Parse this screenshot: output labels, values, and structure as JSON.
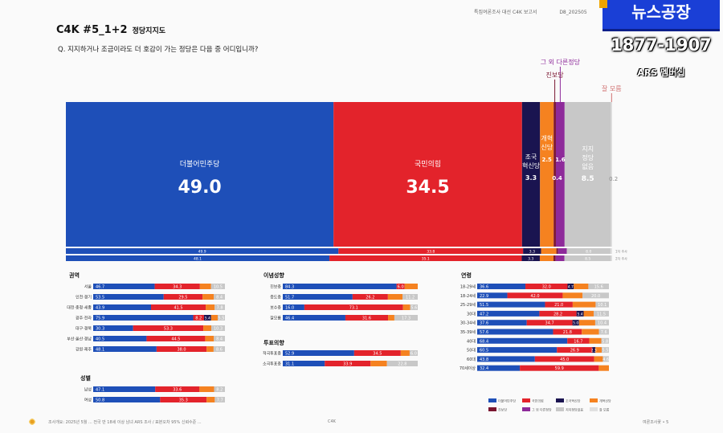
{
  "header": {
    "top_items": [
      "특집여론조사 대선 C4K 보고서",
      "D8_202505"
    ],
    "title": "C4K #5_1+2",
    "subtitle": "정당지지도",
    "question": "Q. 지지하거나 조금이라도 더 호감이 가는 정당은 다음 중 어디입니까?"
  },
  "badge": {
    "logo": "뉴스공장",
    "phone": "1877-1907",
    "label": "ARS 멤버십"
  },
  "colors": {
    "dem": "#1e4fb8",
    "ppp": "#e3232b",
    "rebuild": "#1a1450",
    "reform": "#f58220",
    "progressive": "#7a1530",
    "other": "#8e2a9a",
    "none": "#c8c8c8",
    "dontknow": "#e0e0e0"
  },
  "chart_data": {
    "type": "bar",
    "main": {
      "categories": [
        "더불어민주당",
        "국민의힘",
        "조국혁신당",
        "개혁신당",
        "진보당",
        "그 외 다른정당",
        "지지정당없음",
        "잘 모름"
      ],
      "values": [
        49.0,
        34.5,
        3.3,
        2.5,
        0.4,
        1.6,
        8.5,
        0.2
      ],
      "value_labels": [
        "49.0",
        "34.5",
        "3.3",
        "2.5",
        "0.4",
        "1.6",
        "8.5",
        "0.2"
      ],
      "compare_rows": [
        {
          "values": [
            "49.9",
            "33.8",
            "3.3",
            "2.8",
            "0.3",
            "1.6",
            "8.0",
            "0.3"
          ],
          "tag": "1차 주사"
        },
        {
          "values": [
            "48.1",
            "35.1",
            "3.3",
            "2.5",
            "0.4",
            "1.6",
            "8.5",
            "0.2"
          ],
          "tag": "2차 주사"
        }
      ]
    },
    "panels": [
      {
        "title": "권역",
        "rows": [
          {
            "label": "서울",
            "dem": 46.7,
            "ppp": 34.3,
            "dk": "10.5"
          },
          {
            "label": "인천·경기",
            "dem": 53.5,
            "ppp": 29.5,
            "dk": "8.4"
          },
          {
            "label": "대전·충청·세종",
            "dem": 43.9,
            "ppp": 41.5,
            "dk": "7.8"
          },
          {
            "label": "광주·전라",
            "dem": 75.9,
            "ppp": 8.2,
            "dk": "5.5",
            "extra": "5.4"
          },
          {
            "label": "대구·경북",
            "dem": 30.3,
            "ppp": 53.3,
            "dk": "10.3"
          },
          {
            "label": "부산·울산·경남",
            "dem": 40.5,
            "ppp": 44.5,
            "dk": "8.4"
          },
          {
            "label": "강원·제주",
            "dem": 48.1,
            "ppp": 38.0,
            "dk": "8.6"
          }
        ]
      },
      {
        "title": "성별",
        "rows": [
          {
            "label": "남성",
            "dem": 47.1,
            "ppp": 33.6,
            "dk": "8.2"
          },
          {
            "label": "여성",
            "dem": 50.8,
            "ppp": 35.3,
            "dk": "7.7"
          }
        ]
      },
      {
        "title": "이념성향",
        "rows": [
          {
            "label": "진보층",
            "dem": 84.3,
            "ppp": 6.0,
            "dk": ""
          },
          {
            "label": "중도층",
            "dem": 51.7,
            "ppp": 26.2,
            "dk": "11.2"
          },
          {
            "label": "보수층",
            "dem": 16.0,
            "ppp": 73.1,
            "dk": "5.6"
          },
          {
            "label": "잘모름",
            "dem": 46.4,
            "ppp": 31.6,
            "dk": "17.3"
          }
        ]
      },
      {
        "title": "투표의향",
        "rows": [
          {
            "label": "적극투표층",
            "dem": 52.9,
            "ppp": 34.5,
            "dk": "6.0"
          },
          {
            "label": "소극투표층",
            "dem": 31.1,
            "ppp": 33.9,
            "dk": "22.8"
          }
        ]
      },
      {
        "title": "연령",
        "rows": [
          {
            "label": "18-29세",
            "dem": 36.6,
            "ppp": 32.0,
            "dk": "15.6",
            "extra": "4.7"
          },
          {
            "label": "18-24세",
            "dem": 22.9,
            "ppp": 42.0,
            "dk": "20.0"
          },
          {
            "label": "25-29세",
            "dem": 51.5,
            "ppp": 21.0,
            "dk": "10.1"
          },
          {
            "label": "30대",
            "dem": 47.2,
            "ppp": 28.2,
            "dk": "11.5",
            "extra": "5.4"
          },
          {
            "label": "30-34세",
            "dem": 37.6,
            "ppp": 34.7,
            "dk": "10.4",
            "extra": "5.0"
          },
          {
            "label": "35-39세",
            "dem": 57.6,
            "ppp": 21.8,
            "dk": "7.6"
          },
          {
            "label": "40대",
            "dem": 68.4,
            "ppp": 16.7,
            "dk": "5.8"
          },
          {
            "label": "50대",
            "dem": 60.5,
            "ppp": 26.9,
            "dk": "5.5",
            "extra": "2.3"
          },
          {
            "label": "60대",
            "dem": 43.8,
            "ppp": 45.0,
            "dk": "4.6"
          },
          {
            "label": "70세이상",
            "dem": 32.4,
            "ppp": 59.9,
            "dk": ""
          }
        ]
      }
    ],
    "legend": [
      "더불어민주당",
      "국민의힘",
      "조국혁신당",
      "개혁신당",
      "진보당",
      "그 외 다른정당",
      "지지정당없음",
      "잘 모름"
    ]
  },
  "footer": {
    "left": "조사개요: 2025년 5월 ... 전국 만 18세 이상 남녀 ARS 조사 / 표본오차 95% 신뢰수준 ...",
    "center": "C4K",
    "right": "여론조사꽃 • 5"
  }
}
